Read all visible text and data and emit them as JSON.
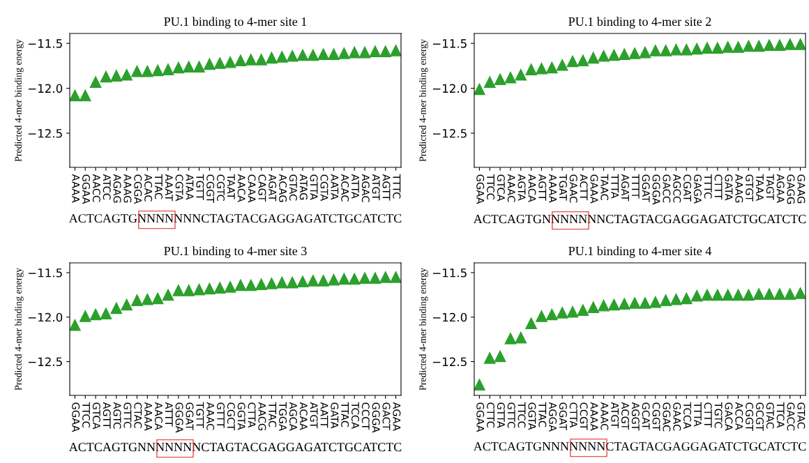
{
  "chart_data": [
    {
      "type": "scatter",
      "title": "PU.1 binding to 4-mer site 1",
      "xlabel": "ACTCAGTGNNNNNNNCTAGTACGAGGAGATCTGCATCTC",
      "ylabel": "Predicted 4-mer binding energy",
      "marker": "triangle",
      "grid": false,
      "legend": false,
      "ylim": [
        -12.88,
        -11.39
      ],
      "yticks": [
        {
          "value": -12.5,
          "label": "−12.5"
        },
        {
          "value": -12.0,
          "label": "−12.0"
        },
        {
          "value": -11.5,
          "label": "−11.5"
        }
      ],
      "categories": [
        "AAAA",
        "GGAA",
        "AACC",
        "ATCC",
        "AGAG",
        "AAAG",
        "CGGA",
        "ACAC",
        "TTAC",
        "AAAT",
        "CGTA",
        "ATAA",
        "TGTT",
        "CGGT",
        "CGTC",
        "TAAT",
        "AACA",
        "CAAA",
        "CAGT",
        "AGAT",
        "ACAG",
        "GTAC",
        "ATAG",
        "GTTA",
        "CGTA",
        "AATA",
        "ACAC",
        "ATTA",
        "AGAC",
        "ATGT",
        "AGTT",
        "TTTC"
      ],
      "series": [
        {
          "color": "#2ca02c",
          "values": [
            -12.08,
            -12.08,
            -11.93,
            -11.87,
            -11.86,
            -11.85,
            -11.81,
            -11.81,
            -11.8,
            -11.79,
            -11.77,
            -11.76,
            -11.76,
            -11.73,
            -11.72,
            -11.71,
            -11.69,
            -11.68,
            -11.68,
            -11.66,
            -11.65,
            -11.64,
            -11.63,
            -11.63,
            -11.62,
            -11.62,
            -11.61,
            -11.6,
            -11.6,
            -11.59,
            -11.59,
            -11.58
          ]
        }
      ]
    },
    {
      "type": "scatter",
      "title": "PU.1 binding to 4-mer site 2",
      "xlabel": "ACTCAGTGNNNNNNNCTAGTACGAGGAGATCTGCATCTC",
      "ylabel": "Predicted 4-mer binding energy",
      "marker": "triangle",
      "grid": false,
      "legend": false,
      "ylim": [
        -12.88,
        -11.39
      ],
      "yticks": [
        {
          "value": -12.5,
          "label": "−12.5"
        },
        {
          "value": -12.0,
          "label": "−12.0"
        },
        {
          "value": -11.5,
          "label": "−11.5"
        }
      ],
      "categories": [
        "GGAA",
        "TTCC",
        "GTCA",
        "AAAC",
        "AGTA",
        "AACA",
        "AGTT",
        "AAAA",
        "TGAT",
        "GAAC",
        "ACTT",
        "GAAA",
        "TAAC",
        "TTTA",
        "AGAT",
        "TTTT",
        "GGAT",
        "GGGA",
        "GACC",
        "AGCC",
        "CGAT",
        "GAGA",
        "TTTC",
        "CTTT",
        "GATA",
        "AAAG",
        "GTGT",
        "TAAA",
        "TAGT",
        "AGAA",
        "GAGG",
        "GAAG"
      ],
      "series": [
        {
          "color": "#2ca02c",
          "values": [
            -12.01,
            -11.93,
            -11.9,
            -11.88,
            -11.85,
            -11.79,
            -11.78,
            -11.77,
            -11.74,
            -11.7,
            -11.69,
            -11.66,
            -11.64,
            -11.63,
            -11.62,
            -11.61,
            -11.6,
            -11.58,
            -11.58,
            -11.57,
            -11.57,
            -11.56,
            -11.55,
            -11.55,
            -11.54,
            -11.54,
            -11.53,
            -11.53,
            -11.52,
            -11.52,
            -11.51,
            -11.51
          ]
        }
      ]
    },
    {
      "type": "scatter",
      "title": "PU.1 binding to 4-mer site 3",
      "xlabel": "ACTCAGTGNNNNNNNCTAGTACGAGGAGATCTGCATCTC",
      "ylabel": "Predicted 4-mer binding energy",
      "marker": "triangle",
      "grid": false,
      "legend": false,
      "ylim": [
        -12.88,
        -11.39
      ],
      "yticks": [
        {
          "value": -12.5,
          "label": "−12.5"
        },
        {
          "value": -12.0,
          "label": "−12.0"
        },
        {
          "value": -11.5,
          "label": "−11.5"
        }
      ],
      "categories": [
        "GGAA",
        "TTCC",
        "GTCA",
        "AGTT",
        "AGTC",
        "GTTC",
        "CTAC",
        "AAAA",
        "AACA",
        "ATTT",
        "GGGA",
        "GGAT",
        "TGTT",
        "AAAC",
        "GTTT",
        "CGCT",
        "GGTA",
        "CTTA",
        "AACG",
        "TTAC",
        "TGGA",
        "AGCA",
        "ACAA",
        "ATGT",
        "AATT",
        "GATA",
        "TTAC",
        "TCCA",
        "CCCT",
        "GGGA",
        "GACT",
        "AGAA"
      ],
      "series": [
        {
          "color": "#2ca02c",
          "values": [
            -12.09,
            -11.99,
            -11.97,
            -11.96,
            -11.9,
            -11.86,
            -11.81,
            -11.8,
            -11.79,
            -11.75,
            -11.7,
            -11.7,
            -11.69,
            -11.68,
            -11.67,
            -11.66,
            -11.64,
            -11.64,
            -11.63,
            -11.62,
            -11.61,
            -11.61,
            -11.6,
            -11.59,
            -11.59,
            -11.58,
            -11.57,
            -11.57,
            -11.56,
            -11.56,
            -11.55,
            -11.55
          ]
        }
      ]
    },
    {
      "type": "scatter",
      "title": "PU.1 binding to 4-mer site 4",
      "xlabel": "ACTCAGTGNNNNNNNCTAGTACGAGGAGATCTGCATCTC",
      "ylabel": "Predicted 4-mer binding energy",
      "marker": "triangle",
      "grid": false,
      "legend": false,
      "ylim": [
        -12.88,
        -11.39
      ],
      "yticks": [
        {
          "value": -12.5,
          "label": "−12.5"
        },
        {
          "value": -12.0,
          "label": "−12.0"
        },
        {
          "value": -11.5,
          "label": "−11.5"
        }
      ],
      "categories": [
        "GGAA",
        "CTTC",
        "GTTA",
        "GTTC",
        "TTCC",
        "GGTA",
        "TTAC",
        "AGGA",
        "GGAT",
        "CTTA",
        "CCGT",
        "AAAA",
        "AAAC",
        "ATGT",
        "ACGT",
        "AGGT",
        "GCAT",
        "CGGT",
        "GGAC",
        "GAAC",
        "TCCA",
        "TTTA",
        "CTTT",
        "TGTC",
        "GACA",
        "ACCA",
        "CGGT",
        "GCGT",
        "GTAC",
        "TTCA",
        "GACC",
        "GTAC"
      ],
      "series": [
        {
          "color": "#2ca02c",
          "values": [
            -12.76,
            -12.46,
            -12.44,
            -12.24,
            -12.23,
            -12.07,
            -11.99,
            -11.97,
            -11.95,
            -11.94,
            -11.92,
            -11.89,
            -11.87,
            -11.86,
            -11.85,
            -11.84,
            -11.84,
            -11.83,
            -11.81,
            -11.8,
            -11.79,
            -11.76,
            -11.75,
            -11.75,
            -11.75,
            -11.75,
            -11.75,
            -11.74,
            -11.74,
            -11.74,
            -11.74,
            -11.73
          ]
        }
      ]
    }
  ]
}
